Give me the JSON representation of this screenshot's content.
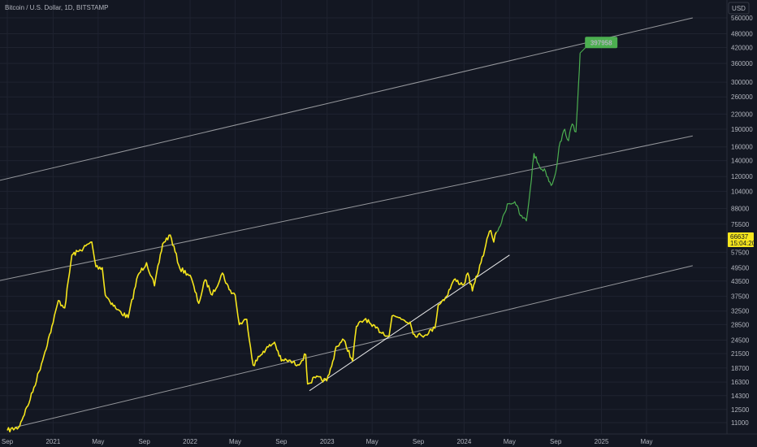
{
  "header": {
    "title": "Bitcoin / U.S. Dollar, 1D, BITSTAMP"
  },
  "currency_button": {
    "label": "USD"
  },
  "colors": {
    "background": "#131722",
    "grid": "#1f2330",
    "price_line": "#f5e51c",
    "projection_line": "#4caf50",
    "trend_line": "#ffffff",
    "label_text": "#b2b5be"
  },
  "price_tag": {
    "value": "66637",
    "time": "15:04:20",
    "color": "#f5e51c"
  },
  "target_label": {
    "text": "397958",
    "color": "#4caf50"
  },
  "chart_data": {
    "type": "line",
    "y_scale": "log",
    "x_ticks": [
      "Sep",
      "2021",
      "May",
      "Sep",
      "2022",
      "May",
      "Sep",
      "2023",
      "May",
      "Sep",
      "2024",
      "May",
      "Sep",
      "2025",
      "May"
    ],
    "y_ticks": [
      "11000",
      "12500",
      "14300",
      "16300",
      "18700",
      "21500",
      "24500",
      "28500",
      "32500",
      "37500",
      "43500",
      "49500",
      "57500",
      "66000",
      "75500",
      "88000",
      "104000",
      "120000",
      "140000",
      "160000",
      "190000",
      "220000",
      "260000",
      "300000",
      "360000",
      "420000",
      "480000",
      "560000"
    ],
    "series": [
      {
        "role": "actual",
        "x": [
          "2020-09-01",
          "2020-10-01",
          "2020-11-01",
          "2020-12-01",
          "2021-01-01",
          "2021-01-15",
          "2021-02-01",
          "2021-02-20",
          "2021-03-10",
          "2021-04-14",
          "2021-04-25",
          "2021-05-12",
          "2021-05-20",
          "2021-06-20",
          "2021-07-20",
          "2021-08-15",
          "2021-09-07",
          "2021-09-28",
          "2021-10-20",
          "2021-11-09",
          "2021-12-05",
          "2022-01-01",
          "2022-01-24",
          "2022-02-10",
          "2022-03-01",
          "2022-03-28",
          "2022-04-15",
          "2022-05-01",
          "2022-05-12",
          "2022-06-01",
          "2022-06-18",
          "2022-07-15",
          "2022-08-14",
          "2022-09-01",
          "2022-09-15",
          "2022-10-15",
          "2022-11-05",
          "2022-11-10",
          "2022-12-01",
          "2022-12-31",
          "2023-01-13",
          "2023-01-25",
          "2023-02-15",
          "2023-03-10",
          "2023-03-20",
          "2023-04-14",
          "2023-05-01",
          "2023-06-15",
          "2023-06-23",
          "2023-07-14",
          "2023-08-10",
          "2023-08-18",
          "2023-09-11",
          "2023-10-15",
          "2023-10-24",
          "2023-11-15",
          "2023-12-05",
          "2023-12-31",
          "2024-01-11",
          "2024-01-23",
          "2024-02-15",
          "2024-02-28",
          "2024-03-05",
          "2024-03-12",
          "2024-03-20",
          "2024-03-27"
        ],
        "y": [
          10200,
          10500,
          13800,
          19500,
          29000,
          36000,
          33500,
          56000,
          58000,
          63500,
          50000,
          49500,
          38000,
          33000,
          30500,
          46000,
          52000,
          41500,
          62500,
          68000,
          49000,
          46000,
          35000,
          44000,
          38000,
          47000,
          40000,
          38000,
          28500,
          30000,
          19200,
          22000,
          24000,
          20000,
          20200,
          19300,
          21300,
          16000,
          17000,
          16500,
          19000,
          23000,
          24500,
          20000,
          28000,
          30200,
          28000,
          25500,
          31000,
          30500,
          29200,
          26000,
          25500,
          27500,
          34500,
          37500,
          44000,
          42000,
          47000,
          39500,
          52000,
          62000,
          67500,
          71000,
          63500,
          70000
        ]
      },
      {
        "role": "projection",
        "x": [
          "2024-03-27",
          "2024-04-10",
          "2024-04-25",
          "2024-05-15",
          "2024-05-30",
          "2024-06-15",
          "2024-06-25",
          "2024-07-05",
          "2024-07-20",
          "2024-08-05",
          "2024-08-20",
          "2024-09-01",
          "2024-09-10",
          "2024-09-25",
          "2024-10-05",
          "2024-10-15",
          "2024-10-25",
          "2024-11-01",
          "2024-11-05"
        ],
        "y": [
          70000,
          77000,
          92000,
          94000,
          82000,
          78000,
          105000,
          150000,
          132000,
          126000,
          110000,
          125000,
          160000,
          190000,
          170000,
          200000,
          185000,
          300000,
          398000
        ]
      }
    ],
    "trend_lines": [
      {
        "x": [
          "2019-12-01",
          "2025-09-01"
        ],
        "y": [
          93000,
          560000
        ]
      },
      {
        "x": [
          "2019-12-01",
          "2025-09-01"
        ],
        "y": [
          36000,
          178000
        ]
      },
      {
        "x": [
          "2020-09-20",
          "2025-09-01"
        ],
        "y": [
          10500,
          50500
        ]
      },
      {
        "x": [
          "2022-11-15",
          "2024-05-01"
        ],
        "y": [
          15000,
          56000
        ]
      }
    ]
  }
}
